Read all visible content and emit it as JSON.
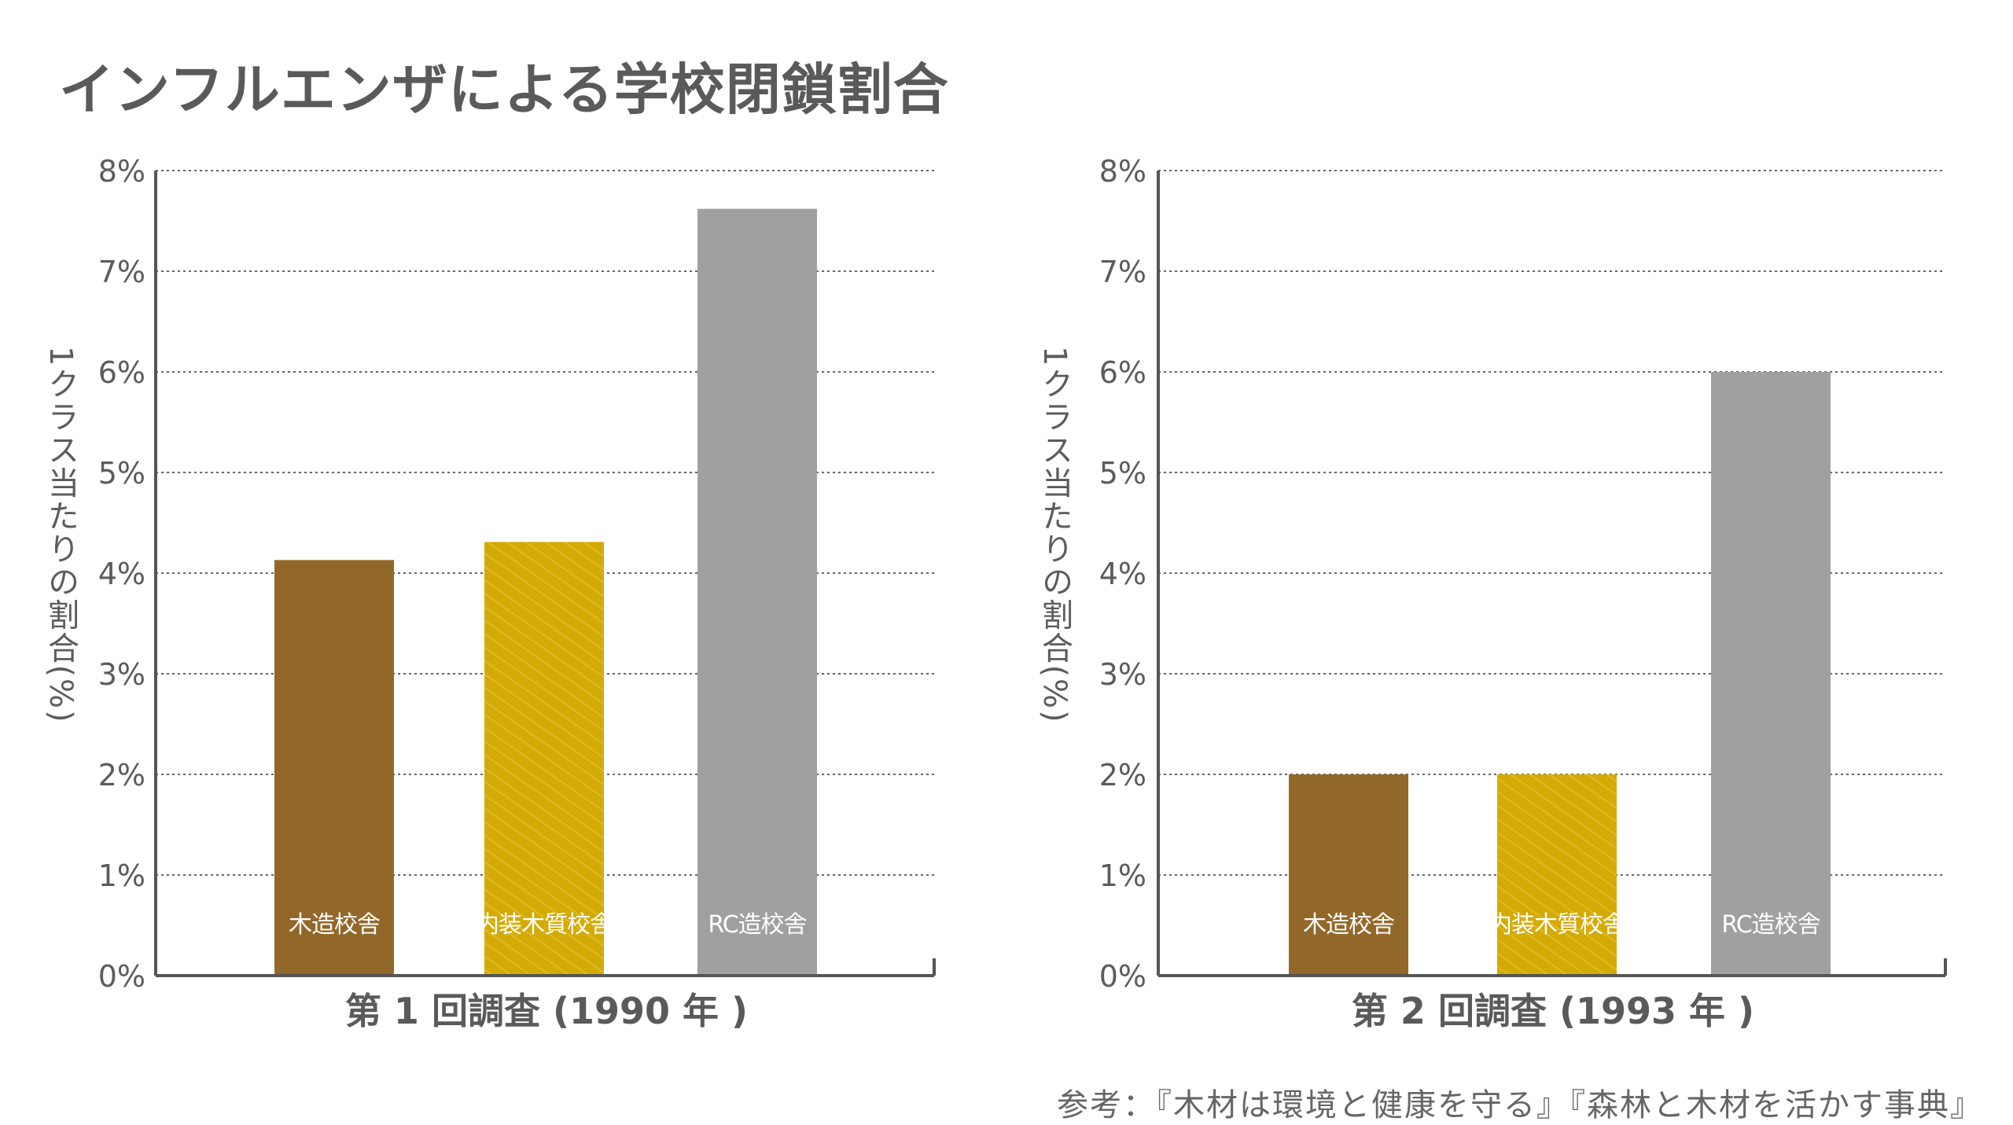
{
  "title": "インフルエンザによる学校閉鎖割合",
  "source_note": "参考：『木材は環境と健康を守る』『森林と木材を活かす事典』",
  "colors": {
    "wood": "#92682a",
    "interior": "#d4aa06",
    "rc": "#a0a0a0",
    "axis": "#555555",
    "grid": "#666666"
  },
  "chart_data": [
    {
      "type": "bar",
      "title": "第 1 回調査 (1990 年 )",
      "ylabel": "1クラス当たりの割合(%)",
      "xlabel": "",
      "ylim": [
        0,
        8
      ],
      "yticks": [
        "0%",
        "1%",
        "2%",
        "3%",
        "4%",
        "5%",
        "6%",
        "7%",
        "8%"
      ],
      "grid": true,
      "categories": [
        "木造校舎",
        "内装木質校舎",
        "RC造校舎"
      ],
      "values": [
        4.13,
        4.31,
        7.62
      ]
    },
    {
      "type": "bar",
      "title": "第 2 回調査 (1993 年 )",
      "ylabel": "1クラス当たりの割合(%)",
      "xlabel": "",
      "ylim": [
        0,
        8
      ],
      "yticks": [
        "0%",
        "1%",
        "2%",
        "3%",
        "4%",
        "5%",
        "6%",
        "7%",
        "8%"
      ],
      "grid": true,
      "categories": [
        "木造校舎",
        "内装木質校舎",
        "RC造校舎"
      ],
      "values": [
        2.0,
        2.0,
        6.0
      ]
    }
  ]
}
